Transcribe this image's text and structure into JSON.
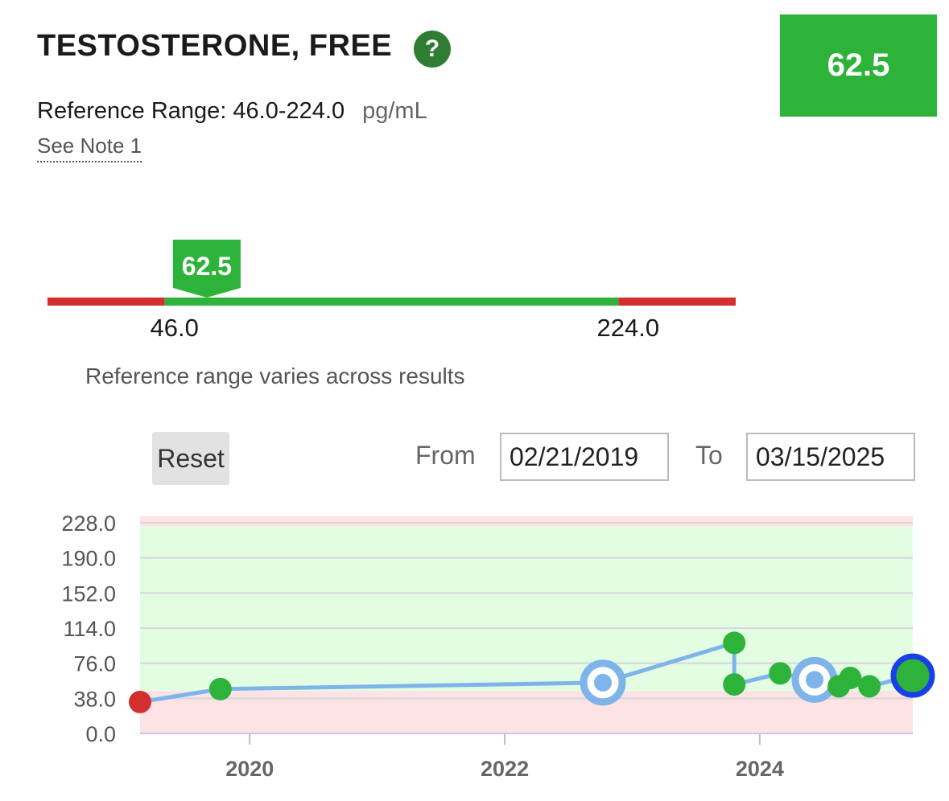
{
  "header": {
    "title": "TESTOSTERONE, FREE",
    "help_glyph": "?",
    "current_value": "62.5",
    "reference_label": "Reference Range: 46.0-224.0",
    "unit": "pg/mL",
    "note_link": "See Note 1"
  },
  "range_bar": {
    "value": 62.5,
    "value_label": "62.5",
    "low": 46.0,
    "high": 224.0,
    "low_label": "46.0",
    "high_label": "224.0",
    "scale_min": 0,
    "scale_max": 270,
    "caption": "Reference range varies across results"
  },
  "controls": {
    "reset_label": "Reset",
    "from_label": "From",
    "from_date": "02/21/2019",
    "to_label": "To",
    "to_date": "03/15/2025"
  },
  "colors": {
    "normal": "#2eb33a",
    "abnormal": "#d32f2f",
    "line": "#7fb4ea",
    "normal_band": "#e3fde3",
    "abnormal_band": "#fde3e3",
    "highlight_ring": "#1a3fe6"
  },
  "chart_data": {
    "type": "line",
    "xlim": [
      2019.14,
      2025.2
    ],
    "ylim": [
      0,
      228
    ],
    "x_ticks": [
      2020,
      2022,
      2024
    ],
    "x_tick_labels": [
      "2020",
      "2022",
      "2024"
    ],
    "y_ticks": [
      0,
      38,
      76,
      114,
      152,
      190,
      228
    ],
    "y_tick_labels": [
      "0.0",
      "38.0",
      "76.0",
      "114.0",
      "152.0",
      "190.0",
      "228.0"
    ],
    "reference_range": [
      46,
      224
    ],
    "grid": true,
    "points": [
      {
        "x": 2019.14,
        "y": 34,
        "status": "abnormal"
      },
      {
        "x": 2019.77,
        "y": 48,
        "status": "normal"
      },
      {
        "x": 2022.77,
        "y": 55,
        "status": "selected"
      },
      {
        "x": 2023.8,
        "y": 98,
        "status": "normal"
      },
      {
        "x": 2023.8,
        "y": 53,
        "status": "normal"
      },
      {
        "x": 2024.16,
        "y": 65,
        "status": "normal"
      },
      {
        "x": 2024.43,
        "y": 58,
        "status": "selected"
      },
      {
        "x": 2024.62,
        "y": 51,
        "status": "normal"
      },
      {
        "x": 2024.71,
        "y": 60,
        "status": "normal"
      },
      {
        "x": 2024.86,
        "y": 51,
        "status": "normal"
      },
      {
        "x": 2025.2,
        "y": 62.5,
        "status": "current"
      }
    ]
  }
}
